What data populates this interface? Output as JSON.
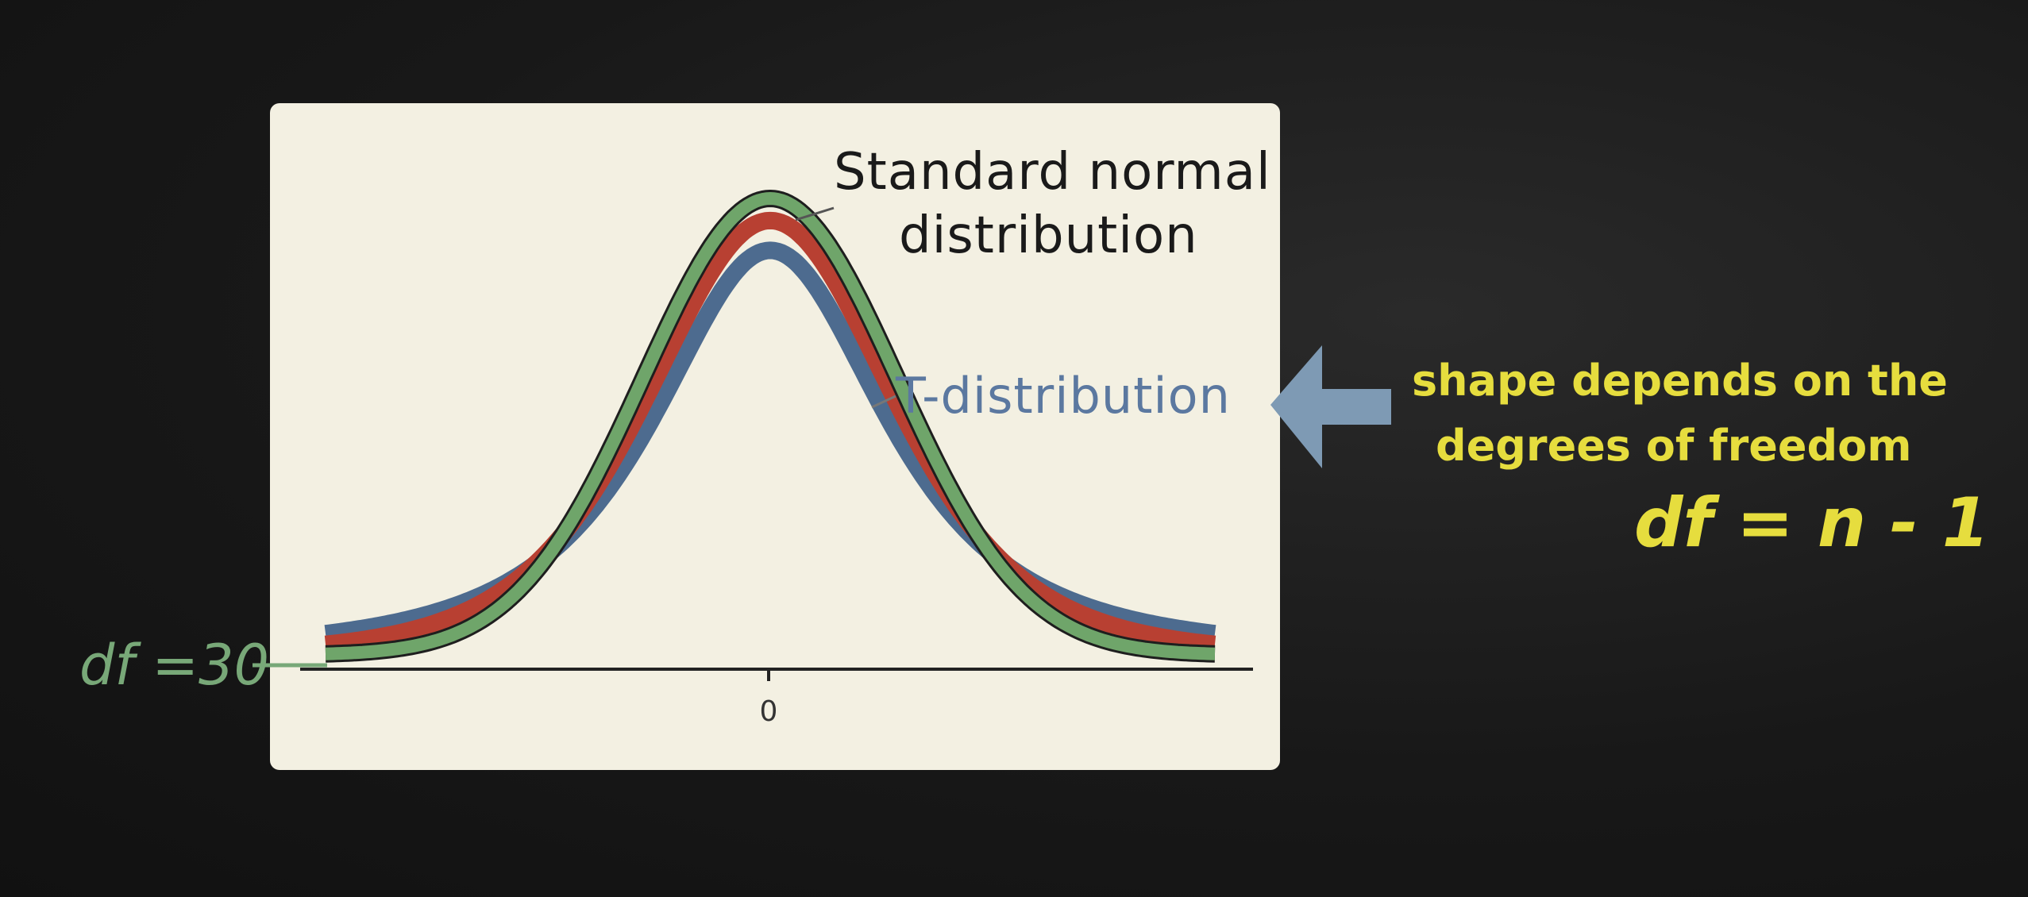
{
  "chart_data": {
    "type": "line",
    "xlim": [
      -3.5,
      3.5
    ],
    "x_ticks": [
      0
    ],
    "tick_labels": [
      "0"
    ],
    "series": [
      {
        "name": "",
        "kind": "t",
        "df": 2,
        "color": "#4d6b8f"
      },
      {
        "name": "",
        "kind": "t",
        "df": 5,
        "color": "#b84032"
      },
      {
        "name": "",
        "kind": "normal",
        "color": "#6fa56a"
      }
    ],
    "annotations": {
      "normal_label": [
        "Standard normal",
        "distribution"
      ],
      "t_label": "T-distribution",
      "df_tag": "df =30"
    }
  },
  "side_note": {
    "line1": "shape depends on the",
    "line2": "degrees of freedom",
    "formula": "df = n - 1"
  },
  "colors": {
    "panel": "#f3f0e2",
    "note_yellow": "#e6dd3e",
    "arrow_blue": "#7e9ab4",
    "t_label_blue": "#5b78a0",
    "df_green": "#78a878"
  }
}
